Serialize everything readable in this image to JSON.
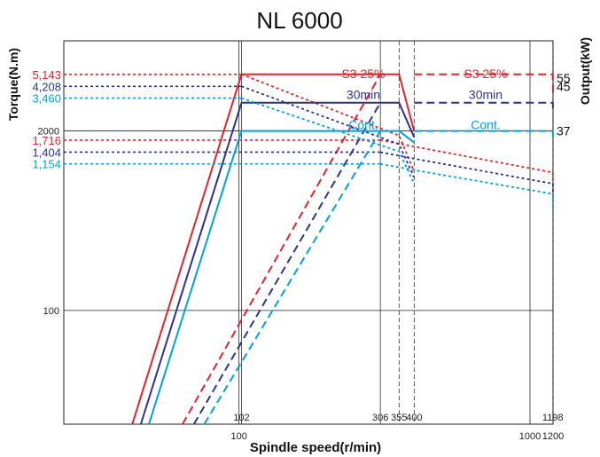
{
  "chart_data": {
    "type": "line",
    "title": "NL 6000",
    "xlabel": "Spindle speed(r/min)",
    "ylabel_left": "Torque(N.m)",
    "ylabel_right": "Output(kW)",
    "x_scale": "log",
    "y_scale": "log",
    "xlim": [
      25,
      1200
    ],
    "ylim": [
      15,
      9000
    ],
    "x_gridlines": [
      100,
      1000
    ],
    "x_ticks": [
      {
        "value": 100,
        "label": "100"
      },
      {
        "value": 1000,
        "label": "1000"
      },
      {
        "value": 1200,
        "label": "1200"
      }
    ],
    "x_markers": [
      {
        "value": 102,
        "label": "102"
      },
      {
        "value": 306,
        "label": "306"
      },
      {
        "value": 355,
        "label": "355"
      },
      {
        "value": 400,
        "label": "400"
      },
      {
        "value": 1198,
        "label": "1198"
      }
    ],
    "y_ticks_left": [
      {
        "value": 100,
        "label": "100"
      },
      {
        "value": 2000,
        "label": "2000"
      }
    ],
    "y_torque_labels": [
      {
        "value": 5143,
        "label": "5,143",
        "color": "#e8202a"
      },
      {
        "value": 4208,
        "label": "4,208",
        "color": "#2e3192"
      },
      {
        "value": 3460,
        "label": "3,460",
        "color": "#00a0e0"
      },
      {
        "value": 1716,
        "label": "1,716",
        "color": "#e8202a"
      },
      {
        "value": 1404,
        "label": "1,404",
        "color": "#2e3192"
      },
      {
        "value": 1154,
        "label": "1,154",
        "color": "#00a0e0"
      }
    ],
    "y_output_labels": [
      {
        "value": 55,
        "label": "55"
      },
      {
        "value": 45,
        "label": "45"
      },
      {
        "value": 37,
        "label": "37"
      }
    ],
    "series": [
      {
        "name": "S3 25%",
        "color": "#e8202a",
        "label_x": [
          306,
          1000
        ],
        "output_kw": 55,
        "high_gear_torque": 5143,
        "low_gear_torque": 1716
      },
      {
        "name": "30min",
        "color": "#2e3192",
        "label_x": [
          306,
          1000
        ],
        "output_kw": 45,
        "high_gear_torque": 4208,
        "low_gear_torque": 1404
      },
      {
        "name": "Cont.",
        "color": "#00a0e0",
        "label_x": [
          306,
          1000
        ],
        "output_kw": 37,
        "high_gear_torque": 3460,
        "low_gear_torque": 1154
      }
    ],
    "grid": true
  }
}
